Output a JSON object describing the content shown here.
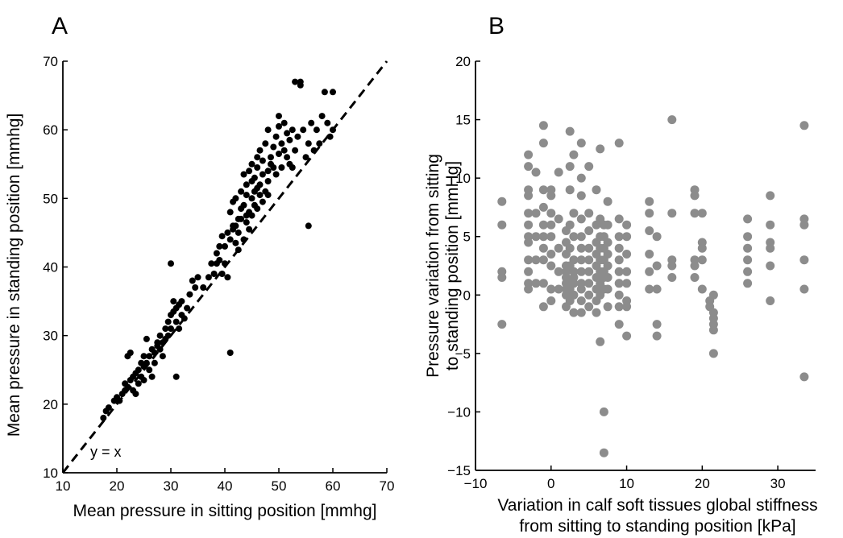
{
  "chart_data": [
    {
      "panel": "A",
      "type": "scatter",
      "xlabel": "Mean pressure in sitting position [mmhg]",
      "ylabel": "Mean pressure in standing position [mmhg]",
      "xlim": [
        10,
        70
      ],
      "ylim": [
        10,
        70
      ],
      "xticks": [
        "10",
        "20",
        "30",
        "40",
        "50",
        "60",
        "70"
      ],
      "yticks": [
        "10",
        "20",
        "30",
        "40",
        "50",
        "60",
        "70"
      ],
      "grid": false,
      "point_color": "#000000",
      "reference_line": {
        "label": "y = x",
        "x": [
          10,
          70
        ],
        "y": [
          10,
          70
        ],
        "style": "dashed"
      },
      "points": [
        [
          17.5,
          18
        ],
        [
          18,
          19
        ],
        [
          18.5,
          19.5
        ],
        [
          19.5,
          20.5
        ],
        [
          20,
          21
        ],
        [
          20.5,
          20.5
        ],
        [
          21,
          21.5
        ],
        [
          21.5,
          22
        ],
        [
          21.5,
          23
        ],
        [
          22,
          22.5
        ],
        [
          22,
          27
        ],
        [
          22.5,
          27.5
        ],
        [
          22.5,
          23.5
        ],
        [
          23,
          22
        ],
        [
          23,
          24
        ],
        [
          23.5,
          24.5
        ],
        [
          23.5,
          21.5
        ],
        [
          24,
          25
        ],
        [
          24,
          23
        ],
        [
          24.5,
          26
        ],
        [
          24.5,
          24
        ],
        [
          25,
          25.5
        ],
        [
          25,
          27
        ],
        [
          25,
          23.5
        ],
        [
          25.5,
          26
        ],
        [
          25.5,
          29.5
        ],
        [
          26,
          25
        ],
        [
          26,
          27
        ],
        [
          26.5,
          28
        ],
        [
          26.5,
          24
        ],
        [
          27,
          27.5
        ],
        [
          27,
          26
        ],
        [
          27.5,
          28.5
        ],
        [
          27.5,
          29
        ],
        [
          28,
          28
        ],
        [
          28,
          30
        ],
        [
          28.5,
          27
        ],
        [
          28.5,
          29
        ],
        [
          29,
          31
        ],
        [
          29,
          29.5
        ],
        [
          29.5,
          30
        ],
        [
          29.5,
          32
        ],
        [
          30,
          31
        ],
        [
          30,
          33
        ],
        [
          30,
          40.5
        ],
        [
          30.5,
          33.5
        ],
        [
          30.5,
          35
        ],
        [
          31,
          24
        ],
        [
          31,
          32
        ],
        [
          31,
          34
        ],
        [
          31.5,
          34.5
        ],
        [
          31.5,
          31
        ],
        [
          32,
          33
        ],
        [
          32,
          35
        ],
        [
          32.5,
          32.5
        ],
        [
          33,
          34
        ],
        [
          33.5,
          36
        ],
        [
          34,
          38
        ],
        [
          34.5,
          37
        ],
        [
          35,
          38.5
        ],
        [
          36,
          37
        ],
        [
          37,
          38.5
        ],
        [
          37.5,
          40.5
        ],
        [
          38,
          39
        ],
        [
          38.5,
          42
        ],
        [
          38.5,
          40.5
        ],
        [
          39,
          43
        ],
        [
          39,
          41
        ],
        [
          39.5,
          44.5
        ],
        [
          39.5,
          39
        ],
        [
          40,
          40.5
        ],
        [
          40,
          43
        ],
        [
          40.5,
          45
        ],
        [
          40.5,
          38.5
        ],
        [
          41,
          27.5
        ],
        [
          41,
          44
        ],
        [
          41,
          48
        ],
        [
          41.5,
          45.5
        ],
        [
          41.5,
          46
        ],
        [
          41.5,
          49.5
        ],
        [
          42,
          46
        ],
        [
          42,
          43.5
        ],
        [
          42,
          50
        ],
        [
          42.5,
          47
        ],
        [
          42.5,
          45
        ],
        [
          42.5,
          42.5
        ],
        [
          43,
          47
        ],
        [
          43,
          48.5
        ],
        [
          43,
          51
        ],
        [
          43.5,
          44
        ],
        [
          43.5,
          49
        ],
        [
          43.5,
          53.5
        ],
        [
          44,
          46.5
        ],
        [
          44,
          50.5
        ],
        [
          44,
          52
        ],
        [
          44.5,
          48
        ],
        [
          44.5,
          54
        ],
        [
          44.5,
          45.5
        ],
        [
          45,
          50
        ],
        [
          45,
          52.5
        ],
        [
          45,
          47.5
        ],
        [
          45,
          55
        ],
        [
          45.5,
          53
        ],
        [
          45.5,
          49
        ],
        [
          45.5,
          51
        ],
        [
          46,
          54.5
        ],
        [
          46,
          48.5
        ],
        [
          46,
          56
        ],
        [
          46.5,
          52
        ],
        [
          46.5,
          50.5
        ],
        [
          46.5,
          57
        ],
        [
          47,
          53.5
        ],
        [
          47,
          49.5
        ],
        [
          47,
          55.5
        ],
        [
          47.5,
          51
        ],
        [
          47.5,
          58
        ],
        [
          48,
          54
        ],
        [
          48,
          52.5
        ],
        [
          48,
          60
        ],
        [
          48.5,
          56
        ],
        [
          48.5,
          55
        ],
        [
          49,
          57.5
        ],
        [
          49,
          54.5
        ],
        [
          49.5,
          59
        ],
        [
          49.5,
          53.5
        ],
        [
          50,
          56.5
        ],
        [
          50,
          62
        ],
        [
          50,
          60.5
        ],
        [
          50.5,
          58
        ],
        [
          50.5,
          54.5
        ],
        [
          51,
          57
        ],
        [
          51,
          61
        ],
        [
          51.5,
          59.5
        ],
        [
          51.5,
          56
        ],
        [
          52,
          58.5
        ],
        [
          52,
          55
        ],
        [
          52.5,
          60
        ],
        [
          52.5,
          54.5
        ],
        [
          53,
          57
        ],
        [
          53,
          67
        ],
        [
          53.5,
          59
        ],
        [
          54,
          67
        ],
        [
          54,
          66.5
        ],
        [
          54.5,
          60
        ],
        [
          55,
          56
        ],
        [
          55.5,
          46
        ],
        [
          55.5,
          58
        ],
        [
          56,
          61
        ],
        [
          56.5,
          57
        ],
        [
          57,
          60
        ],
        [
          57.5,
          58
        ],
        [
          58,
          62
        ],
        [
          58.5,
          65.5
        ],
        [
          59,
          61
        ],
        [
          59.5,
          59
        ],
        [
          60,
          65.5
        ],
        [
          60,
          60
        ],
        [
          48,
          50.5
        ],
        [
          46,
          51.5
        ],
        [
          44,
          47.5
        ]
      ]
    },
    {
      "panel": "B",
      "type": "scatter",
      "xlabel": [
        "Variation in calf soft tissues global stiffness",
        "from sitting to standing position [kPa]"
      ],
      "ylabel": [
        "Pressure variation from sitting",
        "to standing position [mmHg]"
      ],
      "xlim": [
        -10,
        35
      ],
      "ylim": [
        -15,
        20
      ],
      "xticks": [
        "−10",
        "0",
        "10",
        "20",
        "30"
      ],
      "yticks": [
        "−15",
        "−10",
        "−5",
        "0",
        "5",
        "10",
        "15",
        "20"
      ],
      "grid": false,
      "point_color": "#8c8c8c",
      "points": [
        [
          -6.5,
          8
        ],
        [
          -6.5,
          6
        ],
        [
          -6.5,
          2
        ],
        [
          -6.5,
          1.5
        ],
        [
          -6.5,
          -2.5
        ],
        [
          -3,
          12
        ],
        [
          -3,
          11
        ],
        [
          -3,
          9
        ],
        [
          -3,
          8.5
        ],
        [
          -3,
          7
        ],
        [
          -3,
          6
        ],
        [
          -3,
          5
        ],
        [
          -3,
          4.5
        ],
        [
          -3,
          3
        ],
        [
          -3,
          2
        ],
        [
          -3,
          1
        ],
        [
          -3,
          0.5
        ],
        [
          -2,
          10.5
        ],
        [
          -2,
          7
        ],
        [
          -2,
          5
        ],
        [
          -2,
          3
        ],
        [
          -2,
          1
        ],
        [
          -1,
          14.5
        ],
        [
          -1,
          13
        ],
        [
          -1,
          9
        ],
        [
          -1,
          7.5
        ],
        [
          -1,
          6
        ],
        [
          -1,
          5
        ],
        [
          -1,
          4
        ],
        [
          -1,
          3
        ],
        [
          -1,
          1
        ],
        [
          -1,
          -1
        ],
        [
          0,
          9
        ],
        [
          0,
          8.5
        ],
        [
          0,
          7
        ],
        [
          0,
          6
        ],
        [
          0,
          5
        ],
        [
          0,
          3.5
        ],
        [
          0,
          2.5
        ],
        [
          0,
          0.5
        ],
        [
          0,
          -0.5
        ],
        [
          1,
          10.5
        ],
        [
          1,
          6.5
        ],
        [
          1,
          4
        ],
        [
          1,
          2
        ],
        [
          1,
          0.5
        ],
        [
          2,
          5.5
        ],
        [
          2,
          4.5
        ],
        [
          2,
          3.5
        ],
        [
          2,
          2.5
        ],
        [
          2,
          2
        ],
        [
          2,
          1.5
        ],
        [
          2,
          1
        ],
        [
          2,
          0.5
        ],
        [
          2,
          0
        ],
        [
          2,
          -1
        ],
        [
          2.5,
          14
        ],
        [
          2.5,
          11
        ],
        [
          2.5,
          9
        ],
        [
          2.5,
          6
        ],
        [
          2.5,
          4
        ],
        [
          2.5,
          2.5
        ],
        [
          2.5,
          1
        ],
        [
          2.5,
          0.5
        ],
        [
          2.5,
          -0.5
        ],
        [
          3,
          12
        ],
        [
          3,
          7
        ],
        [
          3,
          5
        ],
        [
          3,
          3
        ],
        [
          3,
          2
        ],
        [
          3,
          1.5
        ],
        [
          3,
          1
        ],
        [
          3,
          0
        ],
        [
          3,
          -1.5
        ],
        [
          4,
          13
        ],
        [
          4,
          10
        ],
        [
          4,
          8.5
        ],
        [
          4,
          6.5
        ],
        [
          4,
          5
        ],
        [
          4,
          4
        ],
        [
          4,
          3
        ],
        [
          4,
          2
        ],
        [
          4,
          1
        ],
        [
          4,
          0.5
        ],
        [
          4,
          -0.5
        ],
        [
          4,
          -1.5
        ],
        [
          5,
          11
        ],
        [
          5,
          7
        ],
        [
          5,
          5.5
        ],
        [
          5,
          4
        ],
        [
          5,
          3
        ],
        [
          5,
          2
        ],
        [
          5,
          1
        ],
        [
          5,
          0
        ],
        [
          5,
          -1
        ],
        [
          6,
          9
        ],
        [
          6,
          6
        ],
        [
          6,
          4.5
        ],
        [
          6,
          3.5
        ],
        [
          6,
          2.5
        ],
        [
          6,
          1.5
        ],
        [
          6,
          0.5
        ],
        [
          6,
          -0.5
        ],
        [
          6,
          -1.5
        ],
        [
          6.5,
          12.5
        ],
        [
          6.5,
          6.5
        ],
        [
          6.5,
          5
        ],
        [
          6.5,
          4
        ],
        [
          6.5,
          3
        ],
        [
          6.5,
          2
        ],
        [
          6.5,
          1
        ],
        [
          6.5,
          0
        ],
        [
          6.5,
          -4
        ],
        [
          7,
          6
        ],
        [
          7,
          5
        ],
        [
          7,
          4
        ],
        [
          7,
          3
        ],
        [
          7,
          2
        ],
        [
          7,
          1.5
        ],
        [
          7,
          0.5
        ],
        [
          7,
          -10
        ],
        [
          7,
          -13.5
        ],
        [
          7.5,
          8
        ],
        [
          7.5,
          6
        ],
        [
          7.5,
          4.5
        ],
        [
          7.5,
          3.5
        ],
        [
          7.5,
          2.5
        ],
        [
          7.5,
          1.5
        ],
        [
          7.5,
          0.5
        ],
        [
          7.5,
          -1
        ],
        [
          9,
          13
        ],
        [
          9,
          6.5
        ],
        [
          9,
          5
        ],
        [
          9,
          4
        ],
        [
          9,
          3
        ],
        [
          9,
          2
        ],
        [
          9,
          1
        ],
        [
          9,
          0
        ],
        [
          9,
          -1
        ],
        [
          9,
          -2.5
        ],
        [
          10,
          6
        ],
        [
          10,
          5
        ],
        [
          10,
          3.5
        ],
        [
          10,
          2
        ],
        [
          10,
          1
        ],
        [
          10,
          -0.5
        ],
        [
          10,
          -1
        ],
        [
          10,
          -3.5
        ],
        [
          13,
          8
        ],
        [
          13,
          7
        ],
        [
          13,
          5.5
        ],
        [
          13,
          3.5
        ],
        [
          13,
          2
        ],
        [
          13,
          0.5
        ],
        [
          14,
          5
        ],
        [
          14,
          2.5
        ],
        [
          14,
          0.5
        ],
        [
          14,
          -2.5
        ],
        [
          14,
          -3.5
        ],
        [
          16,
          15
        ],
        [
          16,
          7
        ],
        [
          16,
          3
        ],
        [
          16,
          2.5
        ],
        [
          16,
          1.5
        ],
        [
          19,
          9
        ],
        [
          19,
          8.5
        ],
        [
          19,
          7
        ],
        [
          19,
          3
        ],
        [
          19,
          2.5
        ],
        [
          19,
          1.5
        ],
        [
          20,
          7
        ],
        [
          20,
          4.5
        ],
        [
          20,
          4
        ],
        [
          20,
          3
        ],
        [
          20,
          0.5
        ],
        [
          21,
          -0.5
        ],
        [
          21,
          -1
        ],
        [
          21.5,
          0
        ],
        [
          21.5,
          -1.5
        ],
        [
          21.5,
          -2
        ],
        [
          21.5,
          -2.5
        ],
        [
          21.5,
          -3
        ],
        [
          21.5,
          -5
        ],
        [
          26,
          6.5
        ],
        [
          26,
          5
        ],
        [
          26,
          4
        ],
        [
          26,
          3
        ],
        [
          26,
          2
        ],
        [
          26,
          1
        ],
        [
          29,
          8.5
        ],
        [
          29,
          6
        ],
        [
          29,
          4.5
        ],
        [
          29,
          4
        ],
        [
          29,
          2.5
        ],
        [
          29,
          -0.5
        ],
        [
          33.5,
          14.5
        ],
        [
          33.5,
          6.5
        ],
        [
          33.5,
          6
        ],
        [
          33.5,
          3
        ],
        [
          33.5,
          0.5
        ],
        [
          33.5,
          -7
        ]
      ]
    }
  ]
}
